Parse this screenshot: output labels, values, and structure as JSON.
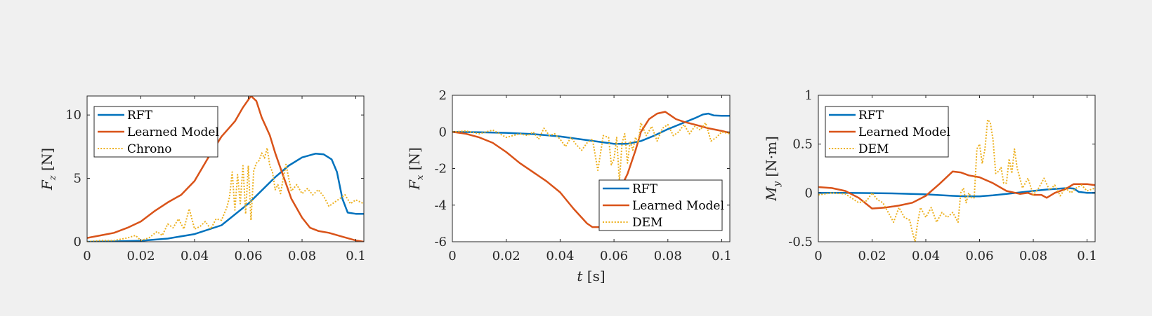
{
  "chart_data": [
    {
      "type": "line",
      "xlabel": "",
      "ylabel": "F_z [N]",
      "ylabel_main": "F",
      "ylabel_sub": "z",
      "ylabel_unit": " [N]",
      "xlim": [
        0,
        0.103
      ],
      "ylim": [
        0,
        11.5
      ],
      "xticks": [
        0,
        0.02,
        0.04,
        0.06,
        0.08,
        0.1
      ],
      "xtick_labels": [
        "0",
        "0.02",
        "0.04",
        "0.06",
        "0.08",
        "0.1"
      ],
      "yticks": [
        0,
        5,
        10
      ],
      "ytick_labels": [
        "0",
        "5",
        "10"
      ],
      "legend_position": "top-left",
      "series": [
        {
          "name": "RFT",
          "color": "#0072BD",
          "style": "solid",
          "x": [
            0,
            0.01,
            0.02,
            0.03,
            0.04,
            0.05,
            0.06,
            0.07,
            0.075,
            0.08,
            0.085,
            0.088,
            0.091,
            0.093,
            0.095,
            0.097,
            0.1,
            0.103
          ],
          "y": [
            0,
            0.03,
            0.08,
            0.25,
            0.6,
            1.3,
            3.0,
            5.1,
            6.0,
            6.65,
            6.95,
            6.9,
            6.5,
            5.5,
            3.4,
            2.3,
            2.2,
            2.2
          ]
        },
        {
          "name": "Learned Model",
          "color": "#D95319",
          "style": "solid",
          "x": [
            0,
            0.005,
            0.01,
            0.015,
            0.02,
            0.025,
            0.03,
            0.035,
            0.04,
            0.045,
            0.05,
            0.055,
            0.058,
            0.061,
            0.063,
            0.065,
            0.068,
            0.07,
            0.073,
            0.076,
            0.08,
            0.083,
            0.086,
            0.09,
            0.095,
            0.1,
            0.103
          ],
          "y": [
            0.3,
            0.5,
            0.7,
            1.1,
            1.6,
            2.4,
            3.1,
            3.7,
            4.8,
            6.6,
            8.3,
            9.5,
            10.6,
            11.5,
            11.1,
            9.8,
            8.4,
            7.0,
            5.2,
            3.4,
            1.9,
            1.1,
            0.85,
            0.7,
            0.4,
            0.1,
            0.0
          ]
        },
        {
          "name": "Chrono",
          "color": "#EDB120",
          "style": "dotted",
          "x": [
            0,
            0.005,
            0.01,
            0.015,
            0.018,
            0.02,
            0.023,
            0.026,
            0.028,
            0.03,
            0.032,
            0.034,
            0.036,
            0.038,
            0.04,
            0.042,
            0.044,
            0.046,
            0.048,
            0.05,
            0.052,
            0.053,
            0.054,
            0.055,
            0.056,
            0.057,
            0.058,
            0.059,
            0.06,
            0.061,
            0.062,
            0.063,
            0.064,
            0.065,
            0.066,
            0.067,
            0.068,
            0.069,
            0.07,
            0.071,
            0.072,
            0.073,
            0.074,
            0.076,
            0.078,
            0.08,
            0.082,
            0.084,
            0.086,
            0.088,
            0.09,
            0.092,
            0.094,
            0.096,
            0.098,
            0.1,
            0.103
          ],
          "y": [
            0,
            0.1,
            0.1,
            0.3,
            0.5,
            0.1,
            0.3,
            0.8,
            0.5,
            1.4,
            1.1,
            1.8,
            1.0,
            2.6,
            1.0,
            1.2,
            1.6,
            1.0,
            1.8,
            1.7,
            2.7,
            3.5,
            5.5,
            2.5,
            5.3,
            3.0,
            6.0,
            2.2,
            6.0,
            1.7,
            5.6,
            6.2,
            6.4,
            7.0,
            6.6,
            7.4,
            6.0,
            5.5,
            4.1,
            4.5,
            3.8,
            5.0,
            6.1,
            4.0,
            4.5,
            3.8,
            4.2,
            3.7,
            4.1,
            3.6,
            2.8,
            3.1,
            3.4,
            3.7,
            3.0,
            3.3,
            3.0
          ]
        }
      ]
    },
    {
      "type": "line",
      "xlabel": "t [s]",
      "xlabel_main": "t",
      "xlabel_unit": " [s]",
      "ylabel": "F_x [N]",
      "ylabel_main": "F",
      "ylabel_sub": "x",
      "ylabel_unit": " [N]",
      "xlim": [
        0,
        0.103
      ],
      "ylim": [
        -6,
        2
      ],
      "xticks": [
        0,
        0.02,
        0.04,
        0.06,
        0.08,
        0.1
      ],
      "xtick_labels": [
        "0",
        "0.02",
        "0.04",
        "0.06",
        "0.08",
        "0.1"
      ],
      "yticks": [
        -6,
        -4,
        -2,
        0,
        2
      ],
      "ytick_labels": [
        "-6",
        "-4",
        "-2",
        "0",
        "2"
      ],
      "legend_position": "bottom-right",
      "series": [
        {
          "name": "RFT",
          "color": "#0072BD",
          "style": "solid",
          "x": [
            0,
            0.01,
            0.02,
            0.03,
            0.04,
            0.05,
            0.055,
            0.06,
            0.065,
            0.07,
            0.075,
            0.08,
            0.085,
            0.09,
            0.093,
            0.095,
            0.097,
            0.1,
            0.103
          ],
          "y": [
            0,
            -0.02,
            -0.05,
            -0.12,
            -0.25,
            -0.45,
            -0.55,
            -0.65,
            -0.65,
            -0.5,
            -0.2,
            0.15,
            0.45,
            0.75,
            0.95,
            1.0,
            0.9,
            0.88,
            0.88
          ]
        },
        {
          "name": "Learned Model",
          "color": "#D95319",
          "style": "solid",
          "x": [
            0,
            0.005,
            0.01,
            0.015,
            0.02,
            0.025,
            0.03,
            0.035,
            0.04,
            0.045,
            0.05,
            0.052,
            0.055,
            0.058,
            0.061,
            0.063,
            0.065,
            0.068,
            0.07,
            0.073,
            0.076,
            0.079,
            0.081,
            0.083,
            0.086,
            0.09,
            0.095,
            0.1,
            0.103
          ],
          "y": [
            0,
            -0.1,
            -0.3,
            -0.6,
            -1.1,
            -1.7,
            -2.2,
            -2.7,
            -3.3,
            -4.2,
            -5.0,
            -5.2,
            -5.2,
            -4.5,
            -3.6,
            -2.9,
            -2.3,
            -1.0,
            0.0,
            0.7,
            1.0,
            1.1,
            0.9,
            0.7,
            0.55,
            0.4,
            0.2,
            0.05,
            -0.05
          ]
        },
        {
          "name": "DEM",
          "color": "#EDB120",
          "style": "dotted",
          "x": [
            0,
            0.005,
            0.01,
            0.015,
            0.02,
            0.025,
            0.028,
            0.03,
            0.032,
            0.034,
            0.036,
            0.038,
            0.04,
            0.042,
            0.044,
            0.046,
            0.048,
            0.05,
            0.052,
            0.054,
            0.056,
            0.058,
            0.059,
            0.06,
            0.061,
            0.062,
            0.063,
            0.064,
            0.065,
            0.066,
            0.067,
            0.068,
            0.069,
            0.07,
            0.072,
            0.074,
            0.076,
            0.078,
            0.08,
            0.082,
            0.084,
            0.086,
            0.088,
            0.09,
            0.092,
            0.094,
            0.096,
            0.098,
            0.1,
            0.103
          ],
          "y": [
            0,
            0.05,
            -0.1,
            0.1,
            -0.3,
            -0.1,
            -0.2,
            0.0,
            -0.4,
            0.2,
            -0.2,
            -0.1,
            -0.4,
            -0.8,
            -0.3,
            -0.7,
            -1.0,
            -0.6,
            -0.4,
            -2.1,
            -0.2,
            -0.3,
            -1.8,
            -1.5,
            -0.3,
            -2.7,
            -0.6,
            -0.1,
            -1.7,
            -0.5,
            -1.0,
            -0.3,
            -0.6,
            0.5,
            -0.2,
            0.3,
            -0.5,
            0.2,
            0.4,
            -0.2,
            0.0,
            0.4,
            -0.1,
            0.3,
            0.1,
            0.5,
            -0.5,
            -0.3,
            0.0,
            -0.1
          ]
        }
      ]
    },
    {
      "type": "line",
      "xlabel": "",
      "ylabel": "M_y [N·m]",
      "ylabel_main": "M",
      "ylabel_sub": "y",
      "ylabel_unit": " [N·m]",
      "xlim": [
        0,
        0.103
      ],
      "ylim": [
        -0.5,
        1
      ],
      "xticks": [
        0,
        0.02,
        0.04,
        0.06,
        0.08,
        0.1
      ],
      "xtick_labels": [
        "0",
        "0.02",
        "0.04",
        "0.06",
        "0.08",
        "0.1"
      ],
      "yticks": [
        -0.5,
        0,
        0.5,
        1
      ],
      "ytick_labels": [
        "-0.5",
        "0",
        "0.5",
        "1"
      ],
      "legend_position": "top-left",
      "series": [
        {
          "name": "RFT",
          "color": "#0072BD",
          "style": "solid",
          "x": [
            0,
            0.01,
            0.02,
            0.03,
            0.04,
            0.05,
            0.055,
            0.06,
            0.065,
            0.07,
            0.075,
            0.08,
            0.085,
            0.09,
            0.093,
            0.095,
            0.097,
            0.1,
            0.103
          ],
          "y": [
            0,
            0,
            -0.002,
            -0.006,
            -0.015,
            -0.03,
            -0.035,
            -0.035,
            -0.025,
            -0.01,
            0.005,
            0.02,
            0.035,
            0.045,
            0.05,
            0.045,
            0.01,
            0.0,
            0.0
          ]
        },
        {
          "name": "Learned Model",
          "color": "#D95319",
          "style": "solid",
          "x": [
            0,
            0.005,
            0.01,
            0.015,
            0.02,
            0.025,
            0.03,
            0.035,
            0.04,
            0.045,
            0.05,
            0.053,
            0.056,
            0.06,
            0.065,
            0.07,
            0.075,
            0.078,
            0.08,
            0.083,
            0.085,
            0.088,
            0.092,
            0.095,
            0.1,
            0.103
          ],
          "y": [
            0.06,
            0.05,
            0.02,
            -0.05,
            -0.16,
            -0.15,
            -0.13,
            -0.1,
            -0.03,
            0.09,
            0.22,
            0.21,
            0.18,
            0.16,
            0.1,
            0.02,
            -0.01,
            0.0,
            -0.02,
            -0.02,
            -0.05,
            0.0,
            0.04,
            0.09,
            0.09,
            0.08
          ]
        },
        {
          "name": "DEM",
          "color": "#EDB120",
          "style": "dotted",
          "x": [
            0,
            0.005,
            0.01,
            0.015,
            0.018,
            0.02,
            0.022,
            0.024,
            0.026,
            0.028,
            0.03,
            0.032,
            0.034,
            0.035,
            0.036,
            0.037,
            0.038,
            0.04,
            0.042,
            0.044,
            0.046,
            0.048,
            0.05,
            0.052,
            0.053,
            0.054,
            0.055,
            0.056,
            0.057,
            0.058,
            0.059,
            0.06,
            0.061,
            0.062,
            0.063,
            0.064,
            0.065,
            0.066,
            0.067,
            0.068,
            0.069,
            0.07,
            0.071,
            0.072,
            0.073,
            0.074,
            0.075,
            0.076,
            0.078,
            0.08,
            0.082,
            0.084,
            0.086,
            0.088,
            0.09,
            0.092,
            0.094,
            0.096,
            0.098,
            0.1,
            0.103
          ],
          "y": [
            -0.02,
            0.0,
            -0.01,
            -0.1,
            -0.08,
            0.0,
            -0.07,
            -0.1,
            -0.2,
            -0.3,
            -0.15,
            -0.25,
            -0.28,
            -0.4,
            -0.5,
            -0.3,
            -0.15,
            -0.25,
            -0.15,
            -0.3,
            -0.2,
            -0.25,
            -0.2,
            -0.3,
            0.0,
            0.05,
            -0.1,
            0.0,
            -0.05,
            -0.05,
            0.45,
            0.5,
            0.3,
            0.45,
            0.75,
            0.72,
            0.55,
            0.2,
            0.22,
            0.26,
            0.1,
            0.1,
            0.35,
            0.2,
            0.45,
            0.25,
            0.15,
            0.05,
            0.15,
            -0.02,
            0.05,
            0.15,
            0.03,
            0.08,
            -0.03,
            0.05,
            0.0,
            0.05,
            0.08,
            0.02,
            0.05
          ]
        }
      ]
    }
  ]
}
